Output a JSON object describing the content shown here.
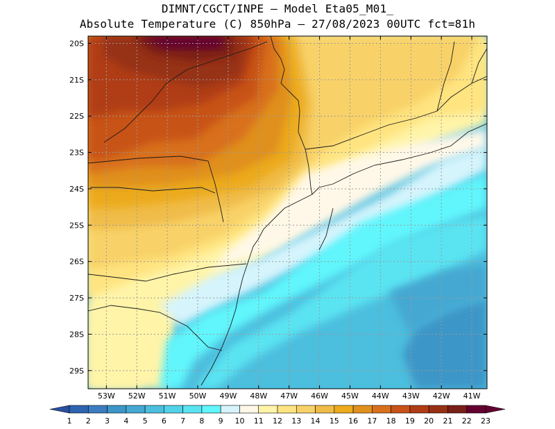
{
  "header": {
    "line1": "DIMNT/CGCT/INPE –  Model Eta05_M01_",
    "line2": "Absolute Temperature (C) 850hPa –  27/08/2023 00UTC fct=81h"
  },
  "map": {
    "lat_labels": [
      "20S",
      "21S",
      "22S",
      "23S",
      "24S",
      "25S",
      "26S",
      "27S",
      "28S",
      "29S"
    ],
    "lon_labels": [
      "53W",
      "52W",
      "51W",
      "50W",
      "49W",
      "48W",
      "47W",
      "46W",
      "45W",
      "44W",
      "43W",
      "42W",
      "41W"
    ],
    "lon_range": [
      -53.6,
      -40.5
    ],
    "lat_range": [
      -29.5,
      -19.8
    ]
  },
  "colorbar": {
    "labels": [
      "1",
      "2",
      "3",
      "4",
      "5",
      "6",
      "7",
      "8",
      "9",
      "10",
      "11",
      "12",
      "13",
      "14",
      "15",
      "16",
      "17",
      "18",
      "19",
      "20",
      "21",
      "22",
      "23"
    ],
    "colors": [
      "#2850a0",
      "#2e64b0",
      "#3c7cc0",
      "#3c96c8",
      "#44a8d2",
      "#4cbede",
      "#52d2e8",
      "#5ae4f2",
      "#60f6fc",
      "#d6f4fc",
      "#fff8e8",
      "#fff4a8",
      "#ffe480",
      "#f8d268",
      "#f0bc48",
      "#ecaa1c",
      "#e0901c",
      "#d8701c",
      "#c85218",
      "#b03c14",
      "#963014",
      "#7a1e18",
      "#640030"
    ]
  }
}
